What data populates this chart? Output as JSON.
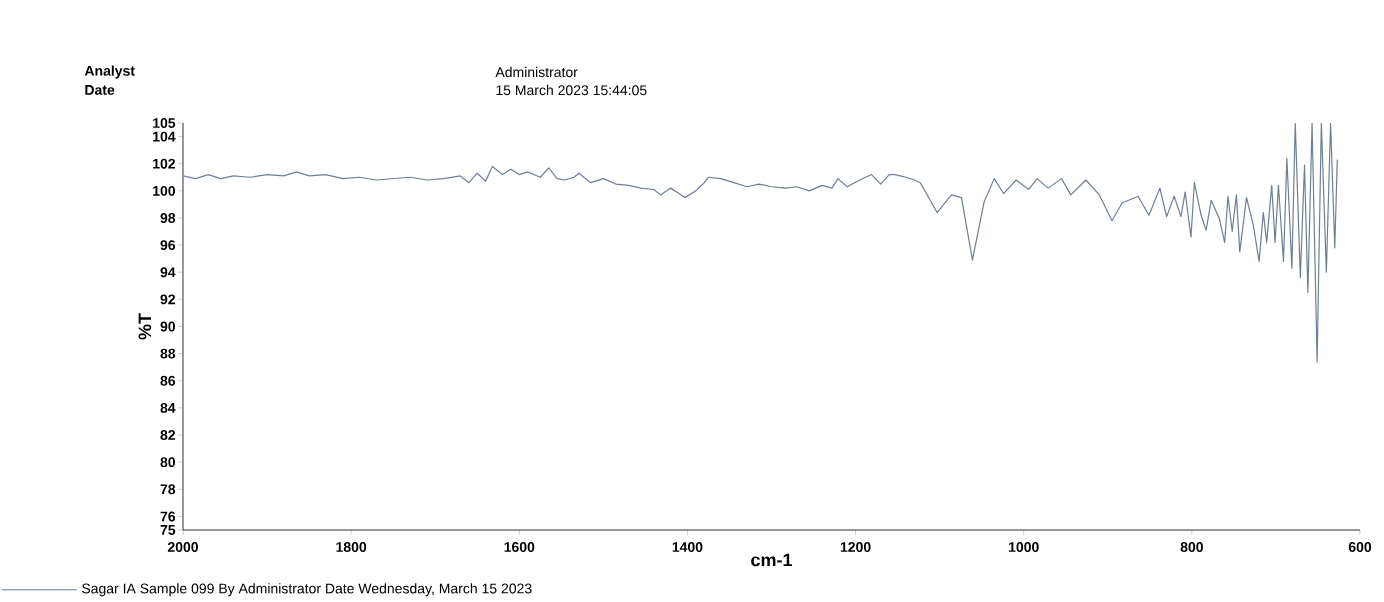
{
  "chart_data": {
    "type": "line",
    "xlabel": "cm-1",
    "ylabel": "%T",
    "annotations": [
      "Analyst",
      "Date",
      "Administrator",
      "15 March 2023 15:44:05"
    ],
    "xlim": [
      2000,
      600
    ],
    "xticks": [
      2000,
      1800,
      1600,
      1400,
      1200,
      1000,
      800,
      600
    ],
    "ylim": [
      75,
      105
    ],
    "yticks": [
      75,
      76,
      78,
      80,
      82,
      84,
      86,
      88,
      90,
      92,
      94,
      96,
      98,
      100,
      102,
      104,
      105
    ],
    "legend": "bottom left",
    "line_style": "solid",
    "series": [
      {
        "name": "Sagar IA    Sample 099 By Administrator Date Wednesday, March 15 2023",
        "color": "#6e7f95",
        "x": [
          2000,
          1985,
          1970,
          1955,
          1940,
          1920,
          1900,
          1880,
          1865,
          1850,
          1830,
          1810,
          1790,
          1770,
          1750,
          1730,
          1710,
          1690,
          1670,
          1660,
          1650,
          1640,
          1632,
          1620,
          1610,
          1600,
          1590,
          1575,
          1565,
          1555,
          1546,
          1535,
          1529,
          1515,
          1500,
          1485,
          1470,
          1455,
          1440,
          1432,
          1420,
          1410,
          1403,
          1390,
          1380,
          1375,
          1360,
          1345,
          1329,
          1315,
          1300,
          1283,
          1270,
          1255,
          1240,
          1228,
          1221,
          1210,
          1195,
          1181,
          1170,
          1160,
          1153,
          1140,
          1130,
          1123,
          1103,
          1086,
          1074,
          1061,
          1047,
          1035,
          1024,
          1009,
          994,
          984,
          971,
          955,
          944,
          926,
          910,
          895,
          883,
          864,
          851,
          838,
          830,
          821,
          813,
          808,
          801,
          797,
          789,
          783,
          777,
          767,
          761,
          757,
          752,
          747,
          743,
          735,
          727,
          720,
          715,
          711,
          705,
          701,
          697,
          691,
          687,
          681,
          677,
          671,
          666,
          662,
          657,
          651,
          646,
          640,
          635,
          630,
          627
        ],
        "values": [
          101.1,
          100.9,
          101.2,
          100.9,
          101.1,
          101.0,
          101.2,
          101.1,
          101.4,
          101.1,
          101.2,
          100.9,
          101.0,
          100.8,
          100.9,
          101.0,
          100.8,
          100.9,
          101.1,
          100.6,
          101.3,
          100.7,
          101.8,
          101.2,
          101.6,
          101.2,
          101.4,
          101.0,
          101.7,
          100.9,
          100.8,
          101.0,
          101.3,
          100.6,
          100.9,
          100.5,
          100.4,
          100.2,
          100.1,
          99.7,
          100.2,
          99.8,
          99.5,
          100.0,
          100.6,
          101.0,
          100.9,
          100.6,
          100.3,
          100.5,
          100.3,
          100.2,
          100.3,
          100.0,
          100.4,
          100.2,
          100.9,
          100.3,
          100.8,
          101.2,
          100.5,
          101.2,
          101.2,
          101.0,
          100.8,
          100.6,
          98.4,
          99.7,
          99.5,
          94.9,
          99.2,
          100.9,
          99.8,
          100.8,
          100.1,
          100.9,
          100.2,
          100.9,
          99.7,
          100.8,
          99.7,
          97.8,
          99.1,
          99.6,
          98.2,
          100.2,
          98.1,
          99.6,
          98.1,
          99.9,
          96.6,
          100.6,
          98.2,
          97.1,
          99.3,
          97.9,
          96.2,
          99.6,
          97.0,
          99.7,
          95.5,
          99.5,
          97.5,
          94.8,
          98.4,
          96.2,
          100.4,
          96.2,
          100.4,
          94.8,
          102.4,
          94.3,
          105,
          93.6,
          101.9,
          92.5,
          105,
          87.4,
          105,
          94.0,
          105,
          95.8,
          102.3
        ]
      }
    ]
  }
}
